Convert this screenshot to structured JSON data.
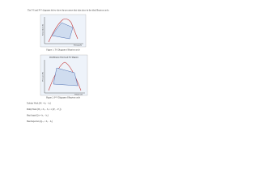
{
  "intro": "The T-S and P-V diagrams below show the processes that take place in the ideal Brayton cycle.",
  "figure1": {
    "y_label": "Temperature (T)",
    "x_label": "Entropy (S)",
    "caption": "Figure 1: T-S Diagram of Brayton cycle"
  },
  "figure2": {
    "title": "Ideal Brayton Heat Cycle P-V Diagram",
    "y_label": "Pressure (P)",
    "x_label": "Volume (V)",
    "caption": "Figure 2: P-V Diagram of Brayton cycle"
  },
  "equations": [
    "Turbine Work (Wₜ = h₃ − h₄)",
    "Pump Work (Wₚ = h₂ − h₁ = v₁(P₂ − P₁))",
    "Heat Input (Qᵢₙ = h₃ − h₂)",
    "Heat Rejection (Qₒᵤₜ = h₄ − h₁)"
  ]
}
